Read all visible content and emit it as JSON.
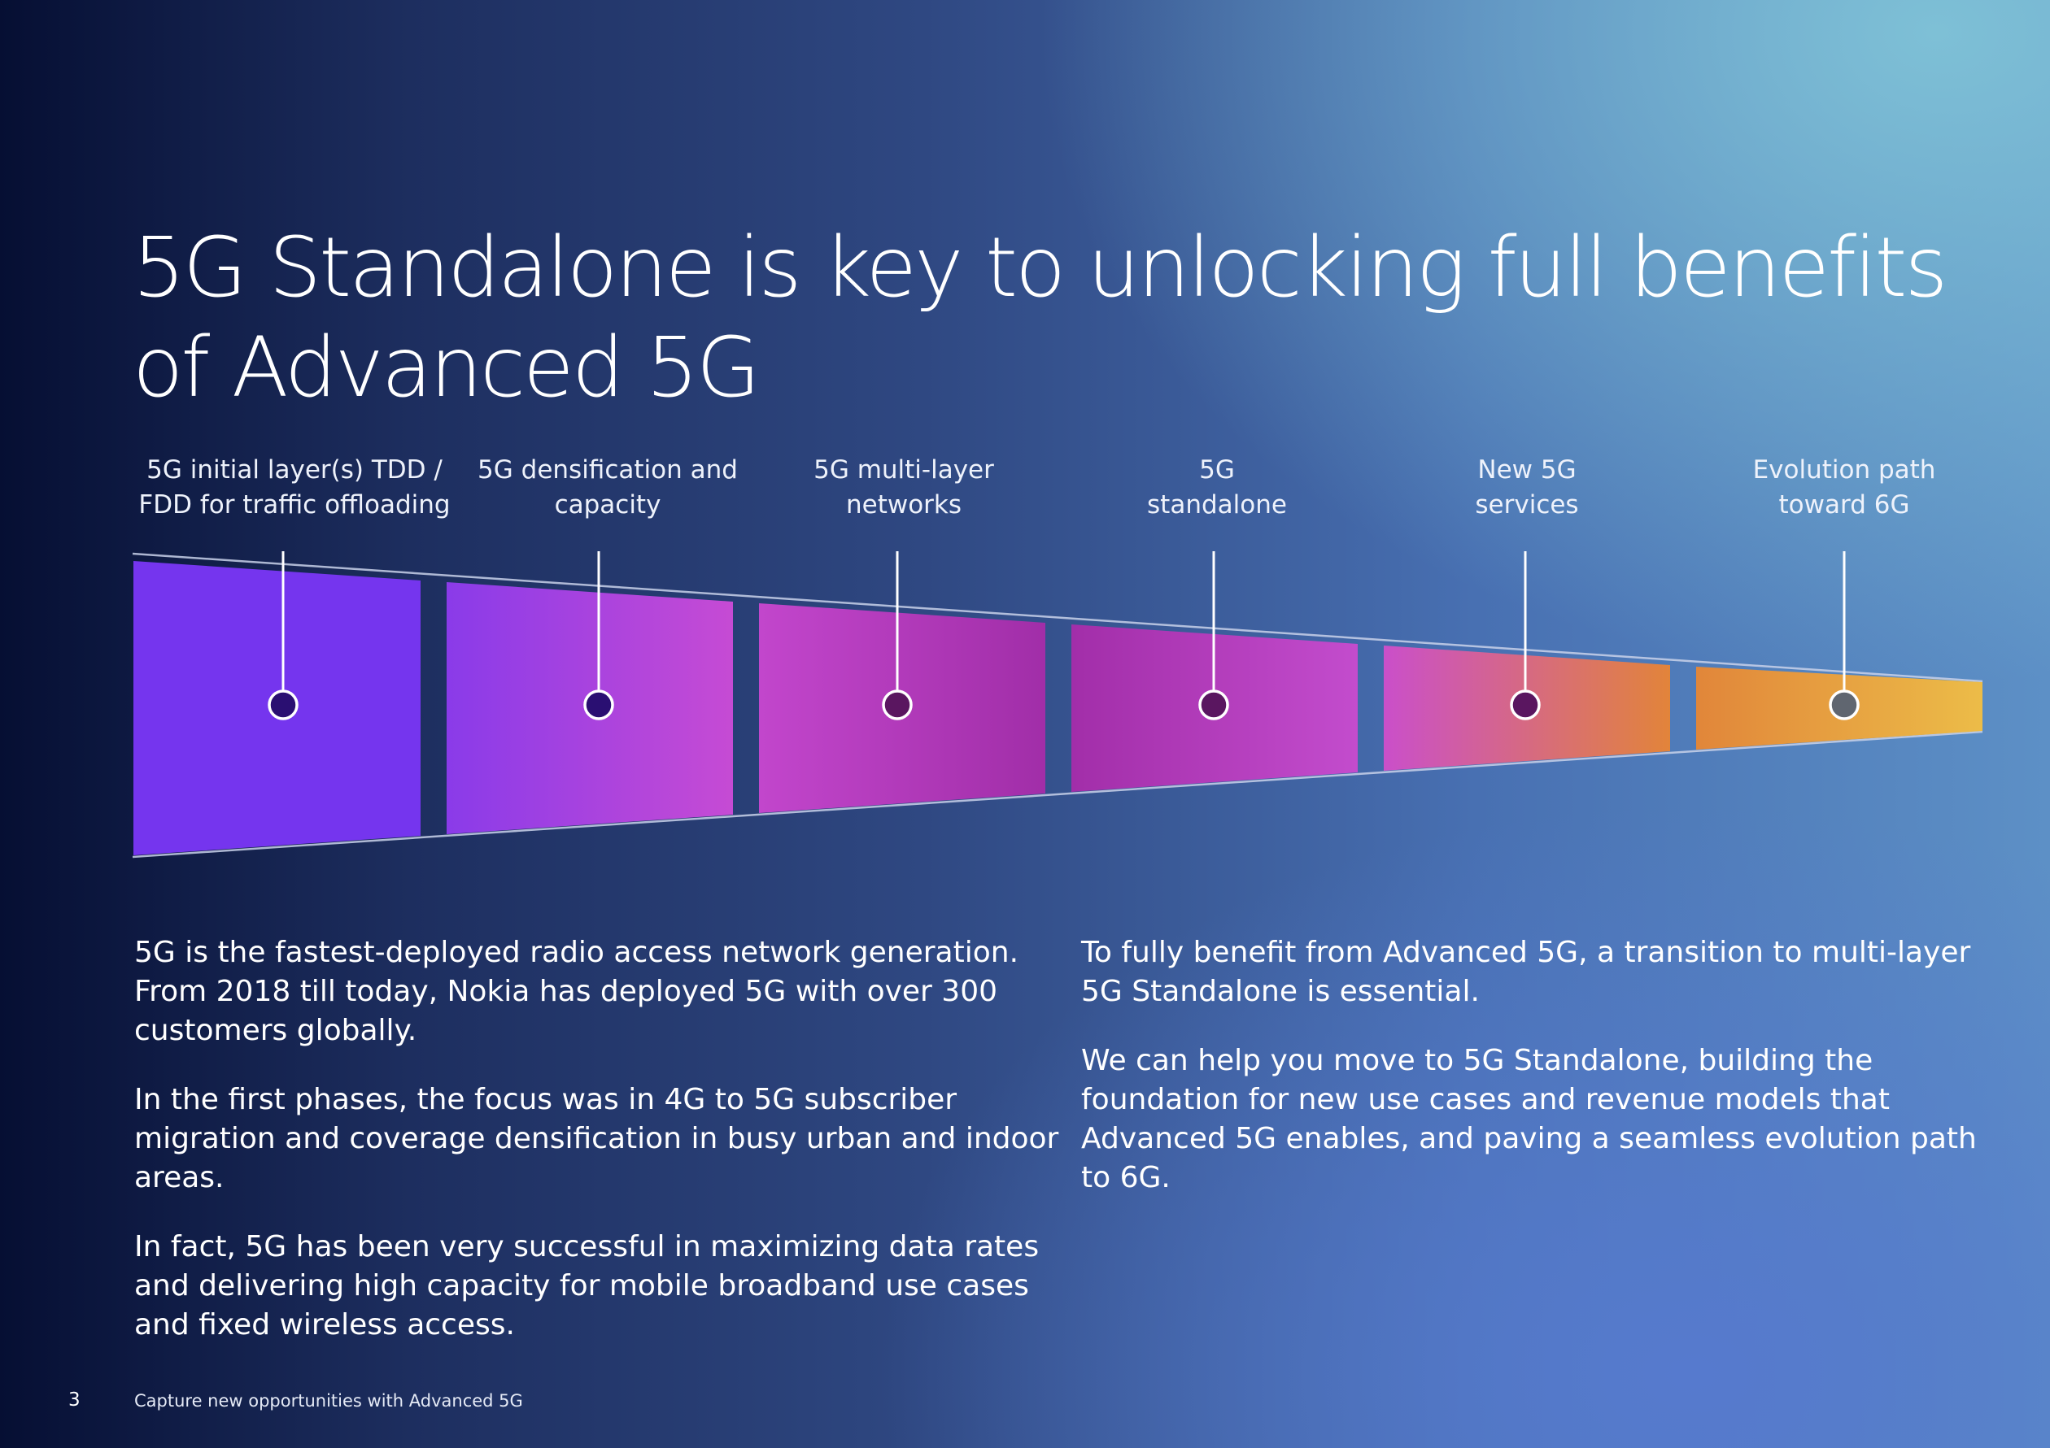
{
  "title": "5G Standalone is key to unlocking full benefits of Advanced 5G",
  "stages": [
    {
      "line1": "5G initial layer(s) TDD /",
      "line2": "FDD for traffic offloading",
      "dot_color": "#2a0f72"
    },
    {
      "line1": "5G densification and",
      "line2": "capacity",
      "dot_color": "#2a0f72"
    },
    {
      "line1": "5G multi-layer",
      "line2": "networks",
      "dot_color": "#5a1660"
    },
    {
      "line1": "5G",
      "line2": "standalone",
      "dot_color": "#5a1660"
    },
    {
      "line1": "New 5G",
      "line2": "services",
      "dot_color": "#5a1660"
    },
    {
      "line1": "Evolution path",
      "line2": "toward 6G",
      "dot_color": "#606670"
    }
  ],
  "segment_gradients": [
    [
      "#7535ee",
      "#7535ee"
    ],
    [
      "#8a3be9",
      "#c64bd4"
    ],
    [
      "#c246cc",
      "#a12ea8"
    ],
    [
      "#a22ea9",
      "#c34ccd"
    ],
    [
      "#ca4fca",
      "#e2843a"
    ],
    [
      "#e1863a",
      "#ecbc48"
    ]
  ],
  "body_left": [
    "5G is the fastest-deployed radio access network generation. From 2018 till today, Nokia has deployed 5G with over 300 customers globally.",
    "In the first phases, the focus was in 4G to 5G subscriber migration and coverage densification in busy urban and indoor areas.",
    "In fact, 5G has been very successful in maximizing data rates and delivering high capacity for mobile broadband use cases and fixed wireless access."
  ],
  "body_right": [
    "To fully benefit from Advanced 5G, a transition to multi-layer 5G Standalone is essential.",
    "We can help you move to 5G Standalone, building the foundation for new use cases and revenue models that Advanced 5G enables, and paving a seamless evolution path to 6G."
  ],
  "page_number": "3",
  "footer": "Capture new opportunities with Advanced 5G"
}
